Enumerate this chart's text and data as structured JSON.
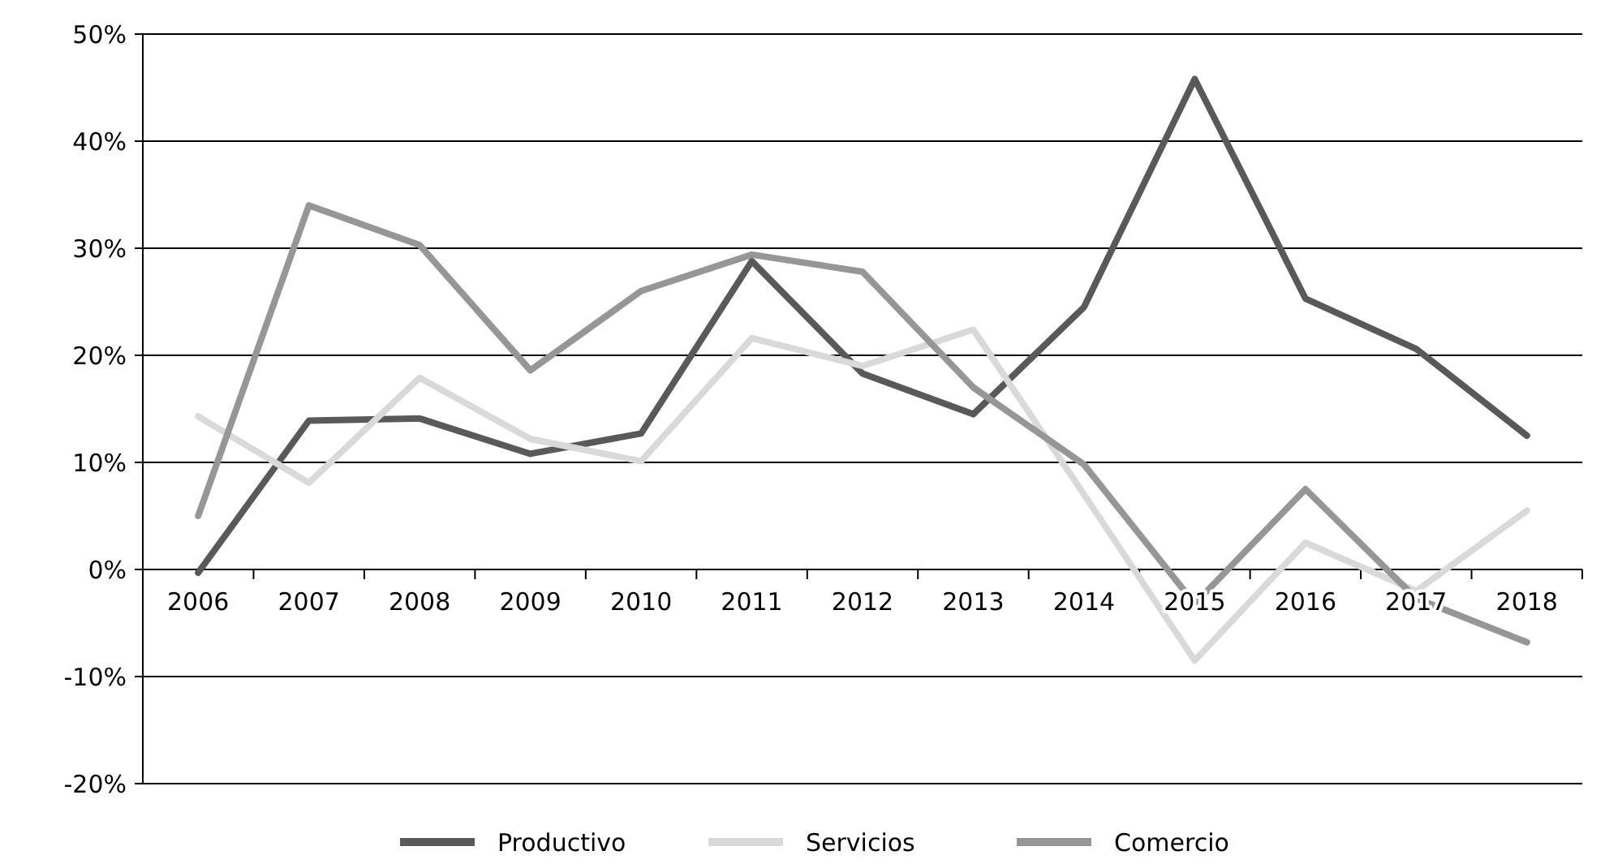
{
  "chart_data": {
    "type": "line",
    "categories": [
      "2006",
      "2007",
      "2008",
      "2009",
      "2010",
      "2011",
      "2012",
      "2013",
      "2014",
      "2015",
      "2016",
      "2017",
      "2018"
    ],
    "series": [
      {
        "name": "Productivo",
        "color": "#595959",
        "values": [
          -0.3,
          13.9,
          14.1,
          10.8,
          12.7,
          28.8,
          18.3,
          14.5,
          24.5,
          45.8,
          25.3,
          20.6,
          12.5
        ]
      },
      {
        "name": "Servicios",
        "color": "#d9d9d9",
        "values": [
          14.3,
          8.1,
          17.9,
          12.2,
          10.1,
          21.6,
          19,
          22.4,
          7,
          -8.5,
          2.5,
          -2,
          5.5
        ]
      },
      {
        "name": "Comercio",
        "color": "#969696",
        "values": [
          5,
          34,
          30.3,
          18.6,
          26,
          29.4,
          27.8,
          17,
          9.8,
          -3.2,
          7.5,
          -2.7,
          -6.8
        ]
      }
    ],
    "ylim": [
      -20,
      50
    ],
    "yticks": [
      {
        "value": -20,
        "label": "-20%"
      },
      {
        "value": -10,
        "label": "-10%"
      },
      {
        "value": 0,
        "label": "0%"
      },
      {
        "value": 10,
        "label": "10%"
      },
      {
        "value": 20,
        "label": "20%"
      },
      {
        "value": 30,
        "label": "30%"
      },
      {
        "value": 40,
        "label": "40%"
      },
      {
        "value": 50,
        "label": "50%"
      }
    ],
    "grid": "y",
    "legend": "bottom",
    "marker": "none",
    "line_style": "solid"
  }
}
